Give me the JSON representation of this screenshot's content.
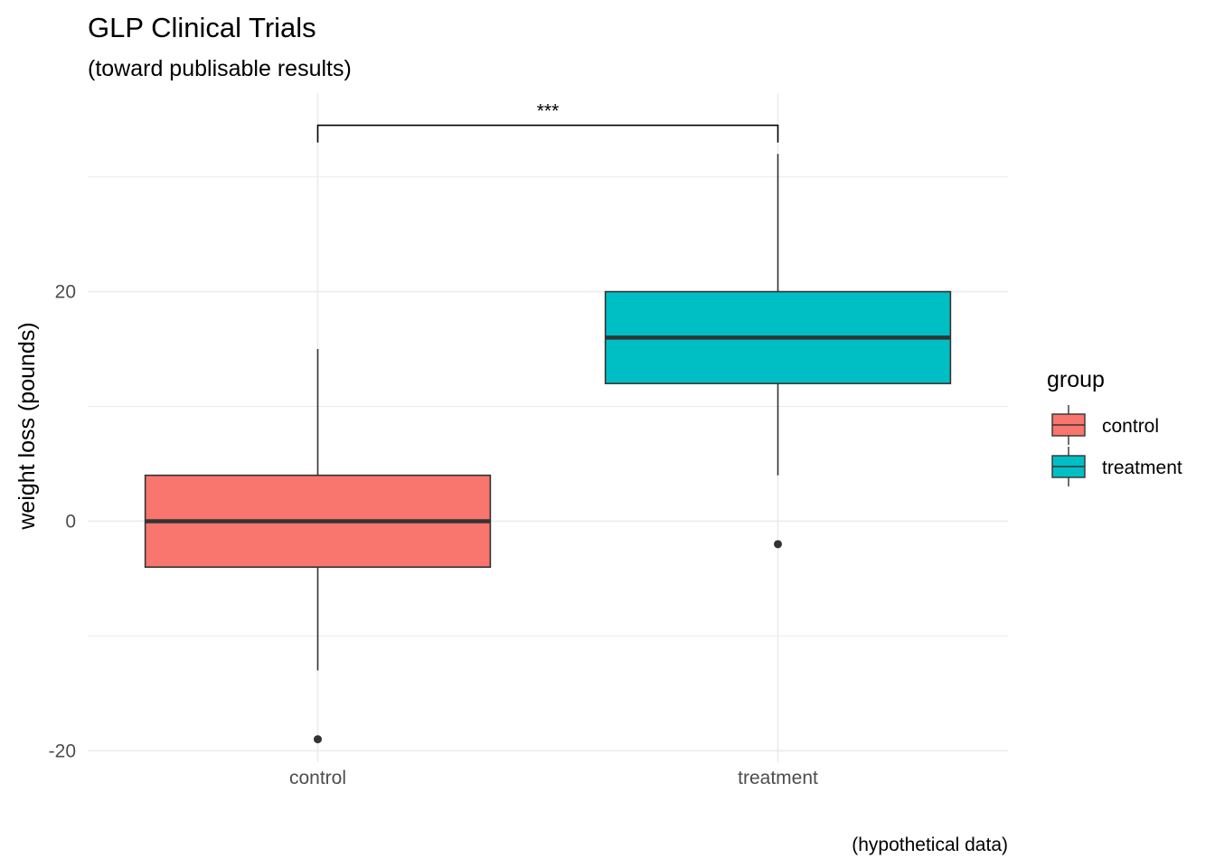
{
  "chart_data": {
    "type": "boxplot",
    "title": "GLP Clinical Trials",
    "subtitle": "(toward publisable results)",
    "caption": "(hypothetical data)",
    "xlabel": "",
    "ylabel": "weight loss (pounds)",
    "ylim": [
      -21,
      37.3
    ],
    "y_ticks": [
      -20,
      0,
      20
    ],
    "y_tick_labels": [
      "-20",
      "0",
      "20"
    ],
    "y_minor_gridlines": [
      -10,
      10,
      30
    ],
    "grid": true,
    "categories": [
      "control",
      "treatment"
    ],
    "legend": {
      "title": "group",
      "position": "right",
      "entries": [
        "control",
        "treatment"
      ]
    },
    "groups": [
      {
        "name": "control",
        "color": "#F8766D",
        "q1": -4,
        "median": 0,
        "q3": 4,
        "whisker_low": -13,
        "whisker_high": 15,
        "outliers": [
          -19
        ]
      },
      {
        "name": "treatment",
        "color": "#00BFC4",
        "q1": 12,
        "median": 16,
        "q3": 20,
        "whisker_low": 4,
        "whisker_high": 32,
        "outliers": [
          -2
        ]
      }
    ],
    "significance": {
      "from": "control",
      "to": "treatment",
      "label": "***",
      "y": 34.5,
      "tip_y": 33
    }
  }
}
